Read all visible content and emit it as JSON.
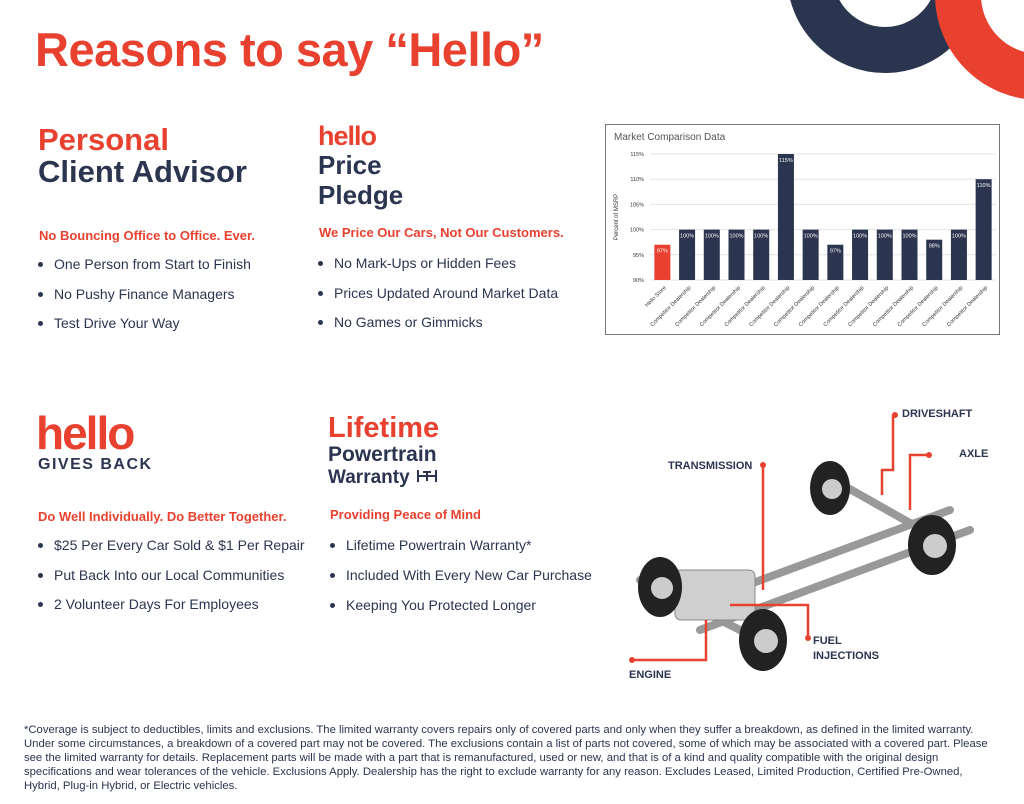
{
  "title": "Reasons to say “Hello”",
  "colors": {
    "red": "#e8412f",
    "navy": "#2b3550"
  },
  "sections": [
    {
      "heading_line1": "Personal",
      "heading_line2": "Client Advisor",
      "subtitle": "No Bouncing Office to Office. Ever.",
      "items": [
        "One Person from Start to Finish",
        "No Pushy Finance Managers",
        "Test Drive Your Way"
      ]
    },
    {
      "logo": "hello",
      "heading_line1": "Price",
      "heading_line2": "Pledge",
      "subtitle": "We Price Our Cars, Not Our Customers.",
      "items": [
        "No Mark-Ups or Hidden Fees",
        "Prices Updated Around Market Data",
        "No Games or Gimmicks"
      ]
    },
    {
      "logo": "hello",
      "logo_sub": "GIVES BACK",
      "subtitle": "Do Well Individually. Do Better Together.",
      "items": [
        "$25 Per Every Car Sold & $1 Per Repair",
        "Put Back Into our Local Communities",
        "2 Volunteer Days For Employees"
      ]
    },
    {
      "heading_line1": "Lifetime",
      "heading_line2": "Powertrain",
      "heading_line3": "Warranty",
      "subtitle": "Providing Peace of Mind",
      "items": [
        "Lifetime Powertrain Warranty*",
        "Included With Every New Car Purchase",
        "Keeping You Protected Longer"
      ]
    }
  ],
  "diagram_labels": {
    "driveshaft": "DRIVESHAFT",
    "axle": "AXLE",
    "transmission": "TRANSMISSION",
    "fuel": "FUEL",
    "injections": "INJECTIONS",
    "engine": "ENGINE"
  },
  "chart_data": {
    "type": "bar",
    "title": "Market Comparison Data",
    "ylabel": "Percent of MSRP",
    "xlabel": "",
    "ylim": [
      90,
      115
    ],
    "yticks": [
      "90%",
      "95%",
      "100%",
      "105%",
      "110%",
      "115%"
    ],
    "grid": true,
    "categories": [
      "Hello Store",
      "Competitor Dealership",
      "Competitor Dealership",
      "Competitor Dealership",
      "Competitor Dealership",
      "Competitor Dealership",
      "Competitor Dealership",
      "Competitor Dealership",
      "Competitor Dealership",
      "Competitor Dealership",
      "Competitor Dealership",
      "Competitor Dealership",
      "Competitor Dealership",
      "Competitor Dealership"
    ],
    "values": [
      97,
      100,
      100,
      100,
      100,
      115,
      100,
      97,
      100,
      100,
      100,
      98,
      100,
      110
    ],
    "data_labels": [
      "97%",
      "100%",
      "100%",
      "100%",
      "100%",
      "115%",
      "100%",
      "97%",
      "100%",
      "100%",
      "100%",
      "98%",
      "100%",
      "110%"
    ],
    "bar_colors": [
      "#e8412f",
      "#2b3550"
    ]
  },
  "footnote": "*Coverage is subject to deductibles, limits and exclusions. The limited warranty covers repairs only of covered parts and only when they suffer a breakdown, as defined in the limited warranty. Under some circumstances, a breakdown of a covered part may not be covered. The exclusions contain a list of parts not covered, some of which may be associated with a covered part. Please see the limited warranty for details. Replacement parts will be made with a part that is remanufactured, used or new, and that is of a kind and quality compatible with the original design specifications and wear tolerances of the vehicle. Exclusions Apply. Dealership has the right to exclude warranty for any reason. Excludes Leased, Limited Production, Certified Pre-Owned, Hybrid, Plug-in Hybrid, or Electric vehicles."
}
